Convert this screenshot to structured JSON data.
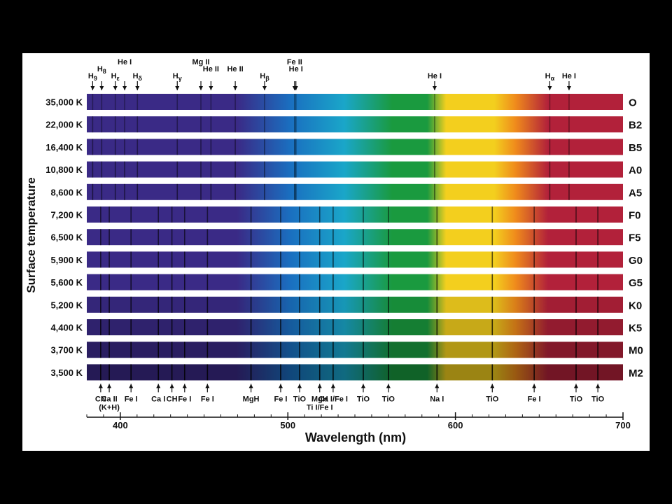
{
  "chart_data": {
    "type": "diagram",
    "title": "",
    "xlabel": "Wavelength (nm)",
    "ylabel": "Surface temperature",
    "xlim": [
      380,
      700
    ],
    "x_ticks": [
      400,
      500,
      600,
      700
    ],
    "spectra": [
      {
        "temperature": "35,000 K",
        "class": "O"
      },
      {
        "temperature": "22,000 K",
        "class": "B2"
      },
      {
        "temperature": "16,400 K",
        "class": "B5"
      },
      {
        "temperature": "10,800 K",
        "class": "A0"
      },
      {
        "temperature": "8,600 K",
        "class": "A5"
      },
      {
        "temperature": "7,200 K",
        "class": "F0"
      },
      {
        "temperature": "6,500 K",
        "class": "F5"
      },
      {
        "temperature": "5,900 K",
        "class": "G0"
      },
      {
        "temperature": "5,600 K",
        "class": "G5"
      },
      {
        "temperature": "5,200 K",
        "class": "K0"
      },
      {
        "temperature": "4,400 K",
        "class": "K5"
      },
      {
        "temperature": "3,700 K",
        "class": "M0"
      },
      {
        "temperature": "3,500 K",
        "class": "M2"
      }
    ],
    "top_lines": [
      {
        "label": "H9",
        "main": "H",
        "sub": "9",
        "wavelength": 383.5
      },
      {
        "label": "H8",
        "main": "H",
        "sub": "8",
        "wavelength": 388.9
      },
      {
        "label": "Hε",
        "main": "H",
        "sub": "ε",
        "wavelength": 397.0
      },
      {
        "label": "He I",
        "main": "He I",
        "sub": "",
        "wavelength": 402.6
      },
      {
        "label": "Hδ",
        "main": "H",
        "sub": "δ",
        "wavelength": 410.2
      },
      {
        "label": "Hγ",
        "main": "H",
        "sub": "γ",
        "wavelength": 434.0
      },
      {
        "label": "Mg II",
        "main": "Mg II",
        "sub": "",
        "wavelength": 448.1
      },
      {
        "label": "He II",
        "main": "He II",
        "sub": "",
        "wavelength": 454.1
      },
      {
        "label": "He II",
        "main": "He II",
        "sub": "",
        "wavelength": 468.6
      },
      {
        "label": "Hβ",
        "main": "H",
        "sub": "β",
        "wavelength": 486.1
      },
      {
        "label": "Fe II",
        "main": "Fe II",
        "sub": "",
        "wavelength": 504.0
      },
      {
        "label": "He I",
        "main": "He I",
        "sub": "",
        "wavelength": 504.8
      },
      {
        "label": "He I",
        "main": "He I",
        "sub": "",
        "wavelength": 587.6
      },
      {
        "label": "Hα",
        "main": "H",
        "sub": "α",
        "wavelength": 656.3
      },
      {
        "label": "He I",
        "main": "He I",
        "sub": "",
        "wavelength": 667.8
      }
    ],
    "bottom_lines": [
      {
        "label": "CN",
        "wavelength": 388.3
      },
      {
        "label": "Ca II",
        "label2": "(K+H)",
        "wavelength": 393.4
      },
      {
        "label": "Fe I",
        "wavelength": 406.4
      },
      {
        "label": "Ca I",
        "wavelength": 422.7
      },
      {
        "label": "CH",
        "wavelength": 430.8
      },
      {
        "label": "Fe I",
        "wavelength": 438.4
      },
      {
        "label": "Fe I",
        "wavelength": 452.0
      },
      {
        "label": "MgH",
        "wavelength": 478.0
      },
      {
        "label": "Fe I",
        "wavelength": 495.7
      },
      {
        "label": "TiO",
        "wavelength": 507.0
      },
      {
        "label": "MgH",
        "label2": "Ti I/Fe I",
        "wavelength": 519.0
      },
      {
        "label": "Ca I/Fe I",
        "wavelength": 527.0
      },
      {
        "label": "TiO",
        "wavelength": 545.0
      },
      {
        "label": "TiO",
        "wavelength": 560.0
      },
      {
        "label": "Na I",
        "wavelength": 589.0
      },
      {
        "label": "TiO",
        "wavelength": 622.0
      },
      {
        "label": "Fe I",
        "wavelength": 647.0
      },
      {
        "label": "TiO",
        "wavelength": 672.0
      },
      {
        "label": "TiO",
        "wavelength": 685.0
      }
    ]
  },
  "colors": {
    "violet": "#3a2a86",
    "blue": "#1a6fc0",
    "cyan": "#1aa6c9",
    "green": "#1a9a3f",
    "yellow": "#f3cf1e",
    "orange": "#ef8a1c",
    "red": "#b2213a",
    "panel": "#ffffff",
    "background": "#000000"
  }
}
